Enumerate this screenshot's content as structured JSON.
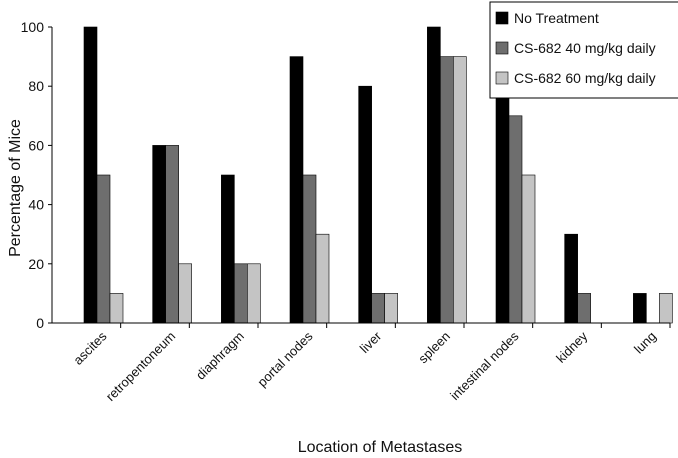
{
  "chart_data": {
    "type": "bar",
    "xlabel": "Location of Metastases",
    "ylabel": "Percentage of Mice",
    "ylim": [
      0,
      100
    ],
    "yticks": [
      0,
      20,
      40,
      60,
      80,
      100
    ],
    "grid": false,
    "legend_position": "top-right",
    "categories": [
      "ascites",
      "retropentoneum",
      "diaphragm",
      "portal nodes",
      "liver",
      "spleen",
      "intestinal nodes",
      "kidney",
      "lung"
    ],
    "series": [
      {
        "name": "No Treatment",
        "color": "#000000",
        "values": [
          100,
          60,
          50,
          90,
          80,
          100,
          100,
          30,
          10
        ]
      },
      {
        "name": "CS-682 40 mg/kg daily",
        "color": "#6e6e6e",
        "values": [
          50,
          60,
          20,
          50,
          10,
          90,
          70,
          10,
          0
        ]
      },
      {
        "name": "CS-682 60 mg/kg daily",
        "color": "#c4c4c4",
        "values": [
          10,
          20,
          20,
          30,
          10,
          90,
          50,
          0,
          10
        ]
      }
    ]
  }
}
